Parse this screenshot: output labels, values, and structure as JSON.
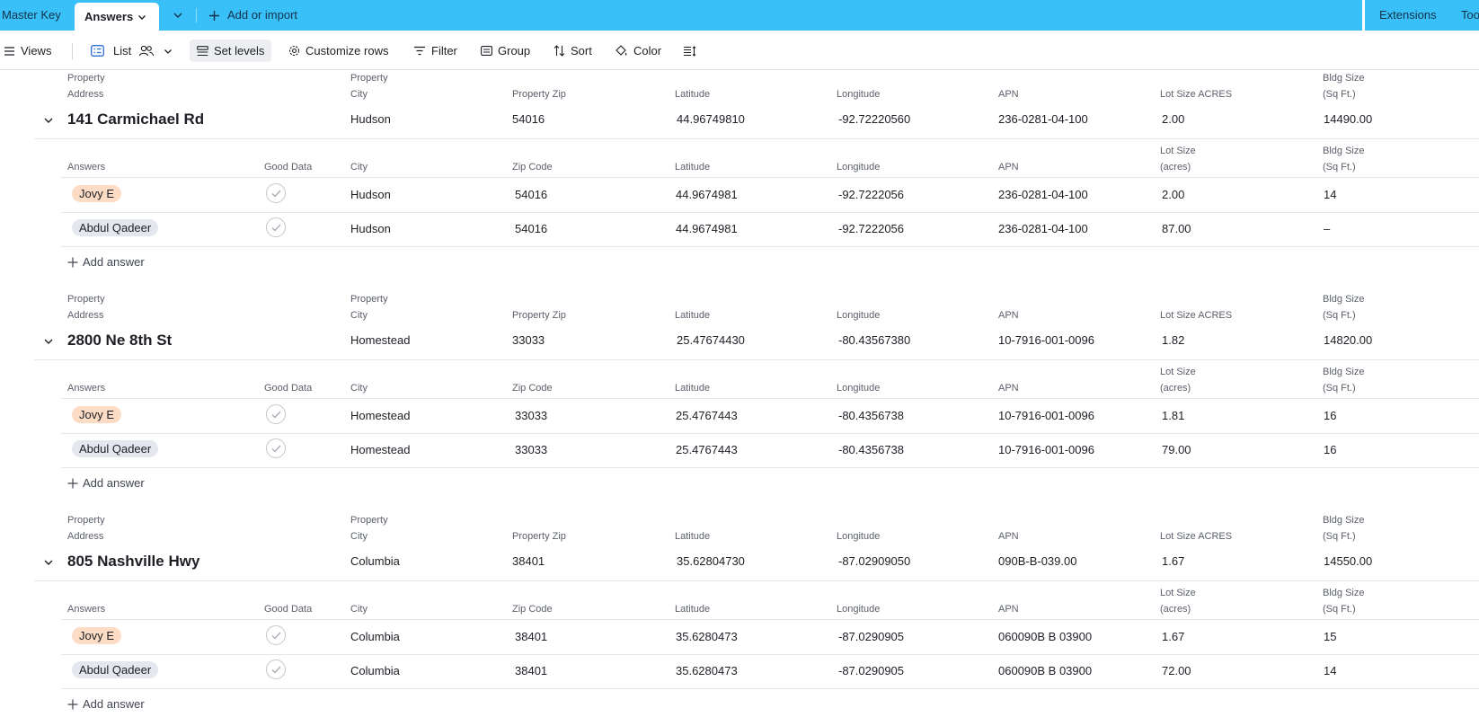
{
  "tabs": {
    "master_key": "Master Key",
    "answers": "Answers",
    "add_or_import": "Add or import",
    "extensions": "Extensions",
    "tools": "Too"
  },
  "toolbar": {
    "views": "Views",
    "list": "List",
    "set_levels": "Set levels",
    "customize_rows": "Customize rows",
    "filter": "Filter",
    "group": "Group",
    "sort": "Sort",
    "color": "Color"
  },
  "property_headers": {
    "address_top": "Property",
    "address_bottom": "Address",
    "city_top": "Property",
    "city_bottom": "City",
    "zip": "Property Zip",
    "latitude": "Latitude",
    "longitude": "Longitude",
    "apn": "APN",
    "lot_size": "Lot Size ACRES",
    "bldg_top": "Bldg Size",
    "bldg_bottom": "(Sq Ft.)"
  },
  "answer_headers": {
    "answers": "Answers",
    "good_data": "Good Data",
    "city": "City",
    "zip": "Zip Code",
    "latitude": "Latitude",
    "longitude": "Longitude",
    "apn": "APN",
    "lot_top": "Lot Size",
    "lot_bottom": "(acres)",
    "bldg_top": "Bldg Size",
    "bldg_bottom": "(Sq Ft.)"
  },
  "add_answer_label": "Add answer",
  "properties": [
    {
      "address": "141 Carmichael Rd",
      "city": "Hudson",
      "zip": "54016",
      "latitude": "44.96749810",
      "longitude": "-92.72220560",
      "apn": "236-0281-04-100",
      "lot_size": "2.00",
      "bldg_size": "14490.00",
      "answers": [
        {
          "name": "Jovy E",
          "pill": "orange",
          "city": "Hudson",
          "zip": "54016",
          "latitude": "44.9674981",
          "longitude": "-92.7222056",
          "apn": "236-0281-04-100",
          "lot_size": "2.00",
          "bldg_size": "14"
        },
        {
          "name": "Abdul Qadeer",
          "pill": "gray",
          "city": "Hudson",
          "zip": "54016",
          "latitude": "44.9674981",
          "longitude": "-92.7222056",
          "apn": "236-0281-04-100",
          "lot_size": "87.00",
          "bldg_size": "–"
        }
      ]
    },
    {
      "address": "2800 Ne 8th St",
      "city": "Homestead",
      "zip": "33033",
      "latitude": "25.47674430",
      "longitude": "-80.43567380",
      "apn": "10-7916-001-0096",
      "lot_size": "1.82",
      "bldg_size": "14820.00",
      "answers": [
        {
          "name": "Jovy E",
          "pill": "orange",
          "city": "Homestead",
          "zip": "33033",
          "latitude": "25.4767443",
          "longitude": "-80.4356738",
          "apn": "10-7916-001-0096",
          "lot_size": "1.81",
          "bldg_size": "16"
        },
        {
          "name": "Abdul Qadeer",
          "pill": "gray",
          "city": "Homestead",
          "zip": "33033",
          "latitude": "25.4767443",
          "longitude": "-80.4356738",
          "apn": "10-7916-001-0096",
          "lot_size": "79.00",
          "bldg_size": "16"
        }
      ]
    },
    {
      "address": "805 Nashville Hwy",
      "city": "Columbia",
      "zip": "38401",
      "latitude": "35.62804730",
      "longitude": "-87.02909050",
      "apn": "090B-B-039.00",
      "lot_size": "1.67",
      "bldg_size": "14550.00",
      "answers": [
        {
          "name": "Jovy E",
          "pill": "orange",
          "city": "Columbia",
          "zip": "38401",
          "latitude": "35.6280473",
          "longitude": "-87.0290905",
          "apn": "060090B B 03900",
          "lot_size": "1.67",
          "bldg_size": "15"
        },
        {
          "name": "Abdul Qadeer",
          "pill": "gray",
          "city": "Columbia",
          "zip": "38401",
          "latitude": "35.6280473",
          "longitude": "-87.0290905",
          "apn": "060090B B 03900",
          "lot_size": "72.00",
          "bldg_size": "14"
        }
      ]
    }
  ]
}
